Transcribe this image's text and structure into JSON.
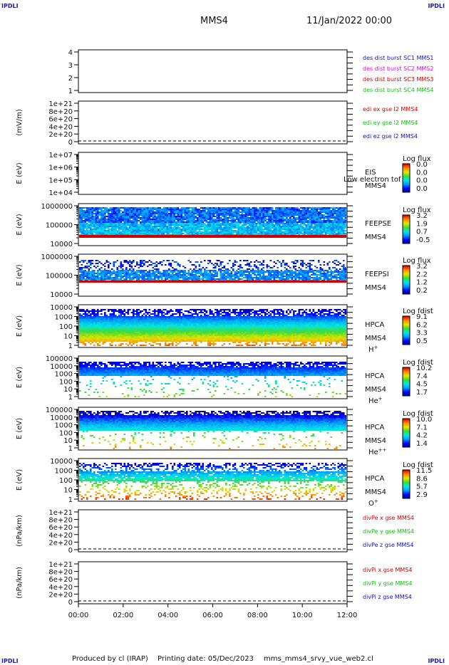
{
  "corners": {
    "tl": "IPDLI",
    "tr": "IPDLI",
    "bl": "IPDLI",
    "br": "IPDLI"
  },
  "header": {
    "spacecraft": "MMS4",
    "date": "11/Jan/2022 00:00"
  },
  "footer": {
    "produced": "Produced by cl (IRAP)",
    "printing": "Printing date: 05/Dec/2023",
    "file": "mms_mms4_srvy_vue_web2.cl"
  },
  "colors": {
    "blue": "#1010c8",
    "magenta": "#d010d0",
    "red": "#d00000",
    "green": "#10c010",
    "black": "#000000"
  },
  "chart_data": [
    {
      "type": "line",
      "panel": "des_dist",
      "ylabel": "",
      "yticks": [
        "1",
        "2",
        "3",
        "4"
      ],
      "legend": [
        {
          "text": "des dist burst SC1 MMS1",
          "color": "#1010c8"
        },
        {
          "text": "des dist burst SC2 MMS2",
          "color": "#d010d0"
        },
        {
          "text": "des dist burst SC3 MMS3",
          "color": "#d00000"
        },
        {
          "text": "des dist burst SC4 MMS4",
          "color": "#10c010"
        }
      ]
    },
    {
      "type": "line",
      "panel": "edi_e",
      "ylabel": "(mV/m)",
      "yticks": [
        "0",
        "2e+20",
        "4e+20",
        "6e+20",
        "8e+20",
        "1e+21"
      ],
      "legend": [
        {
          "text": "edi ex gse l2 MMS4",
          "color": "#d00000"
        },
        {
          "text": "edi ey gse l2 MMS4",
          "color": "#10c010"
        },
        {
          "text": "edi ez gse l2 MMS4",
          "color": "#1010c8"
        }
      ]
    },
    {
      "type": "heatmap",
      "panel": "eis",
      "ylabel": "E (eV)",
      "yticks": [
        "1e+04",
        "1e+05",
        "1e+06",
        "1e+07"
      ],
      "labels": [
        "EIS",
        "MMS4"
      ],
      "overlay": "Low electron tof",
      "colorbar_title": "Log flux",
      "colorbar_ticks": [
        "0.0",
        "0.0",
        "0.0",
        "0.0"
      ]
    },
    {
      "type": "heatmap",
      "panel": "feeps_e",
      "ylabel": "E (eV)",
      "yticks": [
        "10000",
        "100000",
        "1000000"
      ],
      "labels": [
        "FEEPSE",
        "MMS4"
      ],
      "colorbar_title": "Log flux",
      "colorbar_ticks": [
        "3.2",
        "1.9",
        "0.7",
        "-0.5"
      ]
    },
    {
      "type": "heatmap",
      "panel": "feeps_i",
      "ylabel": "E (eV)",
      "yticks": [
        "10000",
        "100000",
        "1000000"
      ],
      "labels": [
        "FEEPSI",
        "MMS4"
      ],
      "colorbar_title": "Log flux",
      "colorbar_ticks": [
        "3.2",
        "2.2",
        "1.2",
        "0.2"
      ]
    },
    {
      "type": "heatmap",
      "panel": "hpca_h",
      "ylabel": "E (eV)",
      "yticks": [
        "1",
        "10",
        "100",
        "1000",
        "10000"
      ],
      "labels": [
        "HPCA",
        "MMS4",
        "H"
      ],
      "species_sup": "+",
      "colorbar_title": "Log fdist",
      "colorbar_ticks": [
        "9.1",
        "6.2",
        "3.3",
        "0.5"
      ]
    },
    {
      "type": "heatmap",
      "panel": "hpca_he",
      "ylabel": "E (eV)",
      "yticks": [
        "1",
        "10",
        "100",
        "1000",
        "10000",
        "100000"
      ],
      "labels": [
        "HPCA",
        "MMS4",
        "He"
      ],
      "species_sup": "+",
      "colorbar_title": "Log fdist",
      "colorbar_ticks": [
        "10.2",
        "7.4",
        "4.5",
        "1.7"
      ]
    },
    {
      "type": "heatmap",
      "panel": "hpca_he2",
      "ylabel": "E (eV)",
      "yticks": [
        "1",
        "10",
        "100",
        "1000",
        "10000",
        "100000"
      ],
      "labels": [
        "HPCA",
        "MMS4",
        "He"
      ],
      "species_sup": "++",
      "colorbar_title": "Log fdist",
      "colorbar_ticks": [
        "10.0",
        "7.1",
        "4.2",
        "1.4"
      ]
    },
    {
      "type": "heatmap",
      "panel": "hpca_o",
      "ylabel": "E (eV)",
      "yticks": [
        "1",
        "10",
        "100",
        "1000",
        "10000"
      ],
      "labels": [
        "HPCA",
        "MMS4",
        "O"
      ],
      "species_sup": "+",
      "colorbar_title": "Log fdist",
      "colorbar_ticks": [
        "11.5",
        "8.6",
        "5.7",
        "2.9"
      ]
    },
    {
      "type": "line",
      "panel": "divpe",
      "ylabel": "(nPa/km)",
      "yticks": [
        "0",
        "2e+20",
        "4e+20",
        "6e+20",
        "8e+20",
        "1e+21"
      ],
      "legend": [
        {
          "text": "divPe x gse MMS4",
          "color": "#d00000"
        },
        {
          "text": "divPe y gse MMS4",
          "color": "#10c010"
        },
        {
          "text": "divPe z gse MMS4",
          "color": "#1010c8"
        }
      ]
    },
    {
      "type": "line",
      "panel": "divpi",
      "ylabel": "(nPa/km)",
      "yticks": [
        "0",
        "2e+20",
        "4e+20",
        "6e+20",
        "8e+20",
        "1e+21"
      ],
      "legend": [
        {
          "text": "divPi x gse MMS4",
          "color": "#d00000"
        },
        {
          "text": "divPi y gse MMS4",
          "color": "#10c010"
        },
        {
          "text": "divPi z gse MMS4",
          "color": "#1010c8"
        }
      ],
      "xticks": [
        "00:00",
        "02:00",
        "04:00",
        "06:00",
        "08:00",
        "10:00",
        "12:00"
      ]
    }
  ]
}
